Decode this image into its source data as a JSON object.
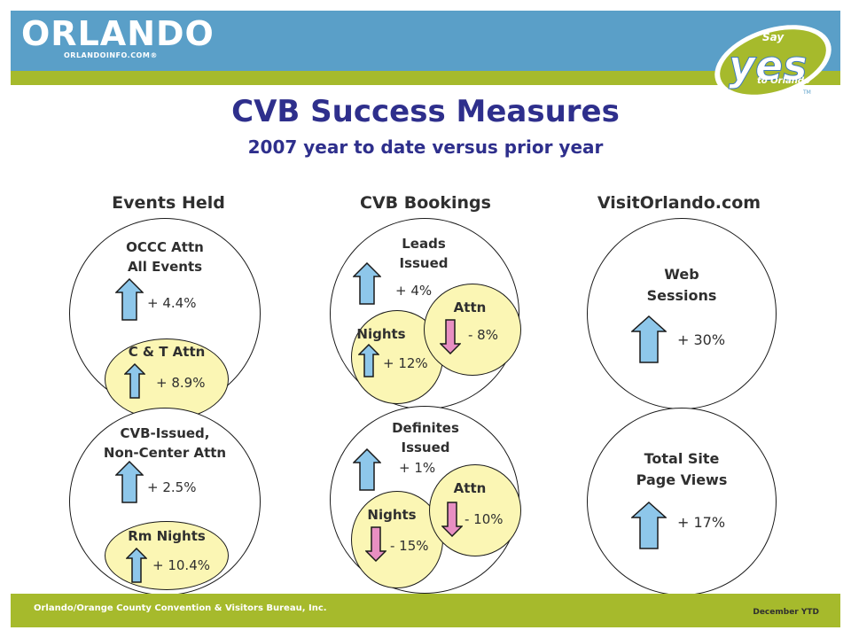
{
  "header": {
    "logo_text": "ORLANDO",
    "logo_sub": "ORLANDOINFO.COM®",
    "badge": {
      "say": "Say",
      "yes": "yes",
      "to_orlando": "to Orlando",
      "tm": "TM"
    }
  },
  "title": "CVB Success Measures",
  "subtitle": "2007 year to date versus prior year",
  "columns": {
    "events": "Events Held",
    "bookings": "CVB Bookings",
    "web": "VisitOrlando.com"
  },
  "events_top": {
    "label_line1": "OCCC Attn",
    "label_line2": "All Events",
    "value": "+ 4.4%",
    "inner_label": "C & T Attn",
    "inner_value": "+ 8.9%"
  },
  "events_bottom": {
    "label_line1": "CVB-Issued,",
    "label_line2": "Non-Center Attn",
    "value": "+ 2.5%",
    "inner_label": "Rm Nights",
    "inner_value": "+ 10.4%"
  },
  "bookings_top": {
    "label_line1": "Leads",
    "label_line2": "Issued",
    "value": "+ 4%",
    "nights_label": "Nights",
    "nights_value": "+ 12%",
    "attn_label": "Attn",
    "attn_value": "- 8%"
  },
  "bookings_bottom": {
    "label_line1": "Definites",
    "label_line2": "Issued",
    "value": "+ 1%",
    "nights_label": "Nights",
    "nights_value": "- 15%",
    "attn_label": "Attn",
    "attn_value": "- 10%"
  },
  "web_top": {
    "label_line1": "Web",
    "label_line2": "Sessions",
    "value": "+ 30%"
  },
  "web_bottom": {
    "label_line1": "Total Site",
    "label_line2": "Page Views",
    "value": "+ 17%"
  },
  "footer": {
    "org": "Orlando/Orange County Convention & Visitors Bureau, Inc.",
    "period": "December YTD"
  },
  "colors": {
    "header_blue": "#5a9fc8",
    "stripe_green": "#a6ba2c",
    "title_navy": "#2e2f8c",
    "arrow_up_fill": "#8ec7ea",
    "arrow_down_fill": "#e88fc2",
    "inner_circle_fill": "#fbf6b4"
  }
}
